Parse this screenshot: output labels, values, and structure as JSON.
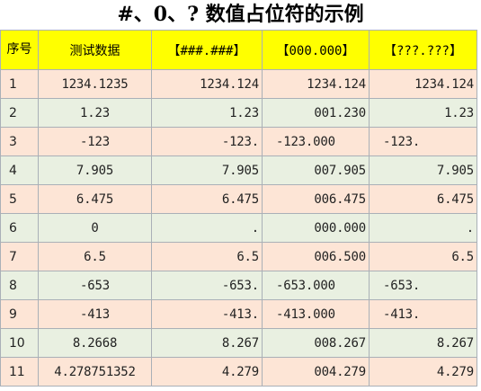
{
  "title": "#、0、? 数值占位符的示例",
  "headers": {
    "seq": "序号",
    "data": "测试数据",
    "fmt1": "【###.###】",
    "fmt2": "【000.000】",
    "fmt3": "【???.???】"
  },
  "rows": [
    {
      "n": "1",
      "v": "1234.1235",
      "a": "1234.124",
      "b": "1234.124",
      "c": "1234.124"
    },
    {
      "n": "2",
      "v": "1.23",
      "a": "1.23",
      "b": "001.230",
      "c": "1.23"
    },
    {
      "n": "3",
      "v": "-123",
      "a": "-123.",
      "b": "-123.000",
      "c": "-123."
    },
    {
      "n": "4",
      "v": "7.905",
      "a": "7.905",
      "b": "007.905",
      "c": "7.905"
    },
    {
      "n": "5",
      "v": "6.475",
      "a": "6.475",
      "b": "006.475",
      "c": "6.475"
    },
    {
      "n": "6",
      "v": "0",
      "a": ".",
      "b": "000.000",
      "c": "."
    },
    {
      "n": "7",
      "v": "6.5",
      "a": "6.5",
      "b": "006.500",
      "c": "6.5"
    },
    {
      "n": "8",
      "v": "-653",
      "a": "-653.",
      "b": "-653.000",
      "c": "-653."
    },
    {
      "n": "9",
      "v": "-413",
      "a": "-413.",
      "b": "-413.000",
      "c": "-413."
    },
    {
      "n": "10",
      "v": "8.2668",
      "a": "8.267",
      "b": "008.267",
      "c": "8.267"
    },
    {
      "n": "11",
      "v": "4.278751352",
      "a": "4.279",
      "b": "004.279",
      "c": "4.279"
    }
  ]
}
